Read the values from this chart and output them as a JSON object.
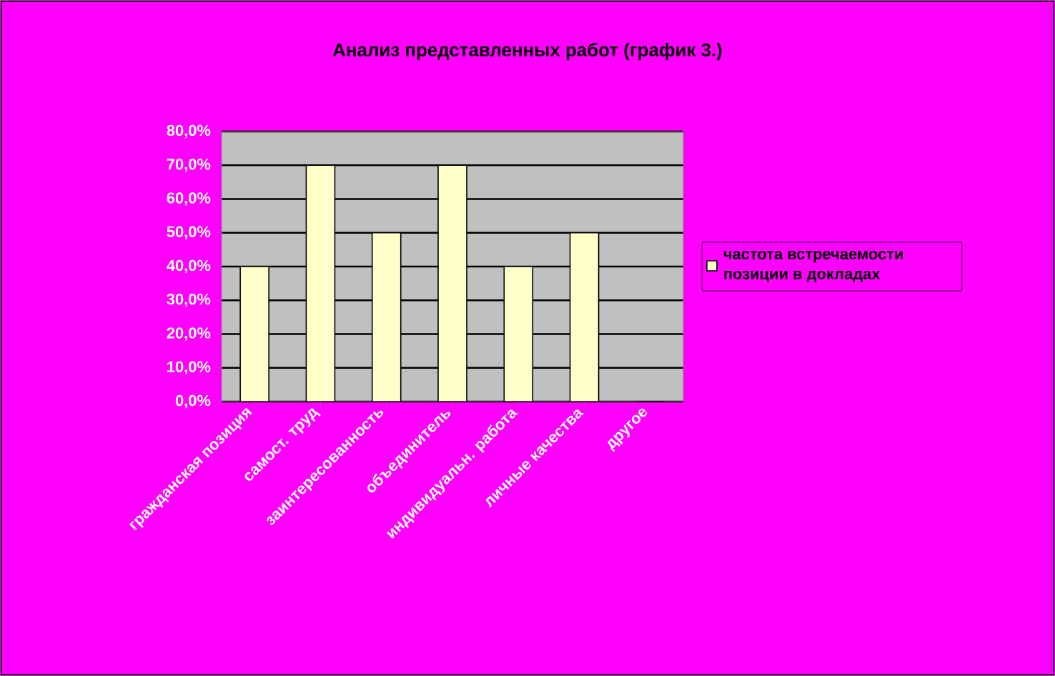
{
  "chart_data": {
    "type": "bar",
    "title": "Анализ представленных работ (график 3.)",
    "categories": [
      "гражданская позиция",
      "самост. труд",
      "заинтересованность",
      "объединитель",
      "индивидуальн. работа",
      "личные качества",
      "другое"
    ],
    "series": [
      {
        "name": "частота встречаемости позиции в докладах",
        "color": "#ffffcc",
        "values": [
          40,
          70,
          50,
          70,
          40,
          50,
          0
        ]
      }
    ],
    "ylim": [
      0,
      80
    ],
    "yticks": [
      {
        "value": 0,
        "label": "0,0%"
      },
      {
        "value": 10,
        "label": "10,0%"
      },
      {
        "value": 20,
        "label": "20,0%"
      },
      {
        "value": 30,
        "label": "30,0%"
      },
      {
        "value": 40,
        "label": "40,0%"
      },
      {
        "value": 50,
        "label": "50,0%"
      },
      {
        "value": 60,
        "label": "60,0%"
      },
      {
        "value": 70,
        "label": "70,0%"
      },
      {
        "value": 80,
        "label": "80,0%"
      }
    ],
    "grid": "y",
    "legend": "right"
  }
}
